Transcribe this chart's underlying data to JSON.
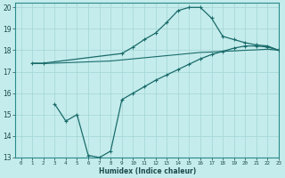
{
  "xlabel": "Humidex (Indice chaleur)",
  "ylabel": "",
  "bg_color": "#c5ecec",
  "grid_color": "#a8d8d8",
  "line_color": "#1a6b6b",
  "xlim": [
    -0.5,
    23
  ],
  "ylim": [
    13,
    20.2
  ],
  "xticks": [
    0,
    1,
    2,
    3,
    4,
    5,
    6,
    7,
    8,
    9,
    10,
    11,
    12,
    13,
    14,
    15,
    16,
    17,
    18,
    19,
    20,
    21,
    22,
    23
  ],
  "yticks": [
    13,
    14,
    15,
    16,
    17,
    18,
    19,
    20
  ],
  "line1_x": [
    1,
    2,
    9,
    10,
    11,
    12,
    13,
    14,
    15,
    16,
    17,
    18,
    19,
    20,
    21,
    22,
    23
  ],
  "line1_y": [
    17.4,
    17.4,
    17.85,
    18.15,
    18.5,
    18.8,
    19.3,
    19.85,
    20.0,
    20.0,
    19.5,
    18.65,
    18.5,
    18.35,
    18.25,
    18.2,
    18.0
  ],
  "line2_x": [
    1,
    2,
    3,
    4,
    5,
    6,
    7,
    8,
    9,
    10,
    11,
    12,
    13,
    14,
    15,
    16,
    17,
    18,
    19,
    20,
    21,
    22,
    23
  ],
  "line2_y": [
    17.38,
    17.38,
    17.4,
    17.42,
    17.44,
    17.46,
    17.48,
    17.5,
    17.55,
    17.6,
    17.65,
    17.7,
    17.75,
    17.8,
    17.85,
    17.9,
    17.92,
    17.95,
    17.97,
    18.0,
    18.02,
    18.05,
    18.0
  ],
  "line3_x": [
    3,
    4,
    5,
    6,
    7,
    8,
    9,
    10,
    11,
    12,
    13,
    14,
    15,
    16,
    17,
    18,
    19,
    20,
    21,
    22,
    23
  ],
  "line3_y": [
    15.5,
    14.7,
    15.0,
    13.1,
    13.0,
    13.3,
    15.7,
    16.0,
    16.3,
    16.6,
    16.85,
    17.1,
    17.35,
    17.6,
    17.8,
    17.95,
    18.1,
    18.2,
    18.2,
    18.15,
    18.0
  ]
}
